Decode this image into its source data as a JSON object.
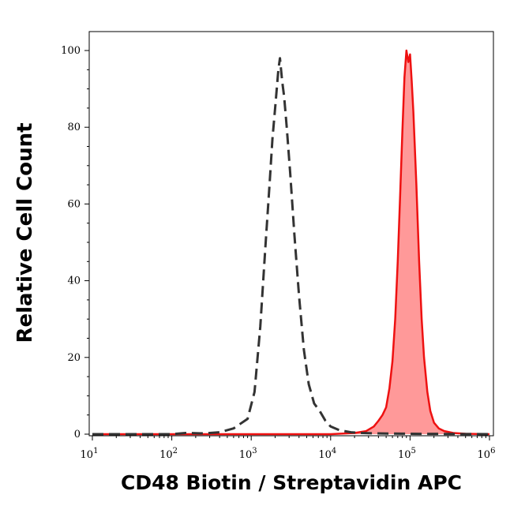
{
  "chart_data": {
    "type": "area",
    "xlabel": "CD48 Biotin / Streptavidin APC",
    "ylabel": "Relative Cell Count",
    "x_scale": "log",
    "xlim": [
      10,
      1000000
    ],
    "ylim": [
      0,
      100
    ],
    "x_ticks": [
      {
        "base": "10",
        "exp": "1",
        "value": 10
      },
      {
        "base": "10",
        "exp": "2",
        "value": 100
      },
      {
        "base": "10",
        "exp": "3",
        "value": 1000
      },
      {
        "base": "10",
        "exp": "4",
        "value": 10000
      },
      {
        "base": "10",
        "exp": "5",
        "value": 100000
      },
      {
        "base": "10",
        "exp": "6",
        "value": 1000000
      }
    ],
    "y_ticks": [
      "0",
      "20",
      "40",
      "60",
      "80",
      "100"
    ],
    "grid": false,
    "series": [
      {
        "style": "dashed",
        "color": "#333333",
        "filled": false,
        "x": [
          10,
          100,
          150,
          250,
          400,
          600,
          900,
          1100,
          1300,
          1500,
          1700,
          1850,
          2000,
          2200,
          2300,
          2450,
          2600,
          2800,
          3100,
          3500,
          4000,
          4600,
          5300,
          6200,
          7300,
          8600,
          10000,
          13000,
          18000,
          25000,
          35000,
          100000,
          1000000
        ],
        "y": [
          0,
          0,
          0.3,
          0.2,
          0.5,
          1.5,
          4,
          11,
          28,
          48,
          65,
          77,
          85,
          95,
          98,
          92,
          88,
          80,
          68,
          52,
          36,
          22,
          13,
          8,
          6,
          3.5,
          2,
          1,
          0.5,
          0.3,
          0.2,
          0.1,
          0
        ]
      },
      {
        "style": "solid",
        "color": "#ee1111",
        "fill": "#ff9999",
        "filled": true,
        "x": [
          10,
          100,
          1000,
          10000,
          20000,
          28000,
          35000,
          40000,
          45000,
          50000,
          55000,
          60000,
          65000,
          70000,
          75000,
          80000,
          85000,
          90000,
          95000,
          100000,
          105000,
          110000,
          120000,
          130000,
          140000,
          150000,
          165000,
          180000,
          200000,
          230000,
          270000,
          350000,
          500000,
          1000000
        ],
        "y": [
          0,
          0,
          0,
          0,
          0.3,
          0.8,
          2,
          3.5,
          5,
          7,
          12,
          19,
          30,
          45,
          62,
          79,
          93,
          100,
          97,
          99,
          92,
          84,
          65,
          45,
          30,
          20,
          11,
          6,
          3,
          1.5,
          0.8,
          0.3,
          0.1,
          0
        ]
      }
    ]
  }
}
